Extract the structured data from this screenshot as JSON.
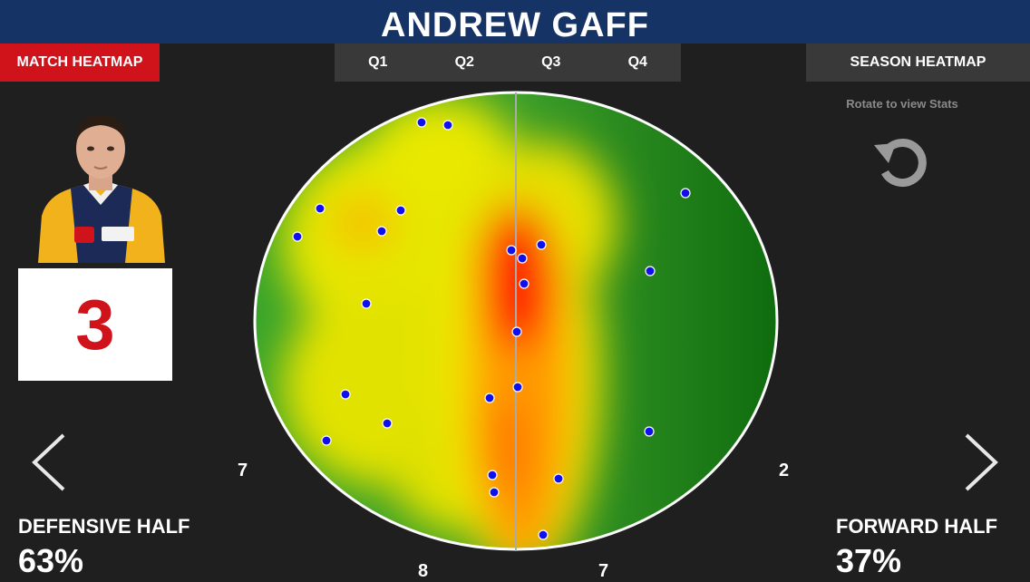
{
  "header": {
    "title": "ANDREW GAFF"
  },
  "buttons": {
    "match_heatmap": "MATCH HEATMAP",
    "season_heatmap": "SEASON HEATMAP"
  },
  "quarters": [
    "Q1",
    "Q2",
    "Q3",
    "Q4"
  ],
  "player": {
    "score": "3"
  },
  "rotate_hint": "Rotate to view Stats",
  "icons": {
    "rotate": "rotate-icon",
    "prev": "chevron-left-icon",
    "next": "chevron-right-icon"
  },
  "zones": {
    "left_mid": "7",
    "right_mid": "2",
    "bottom_left": "8",
    "bottom_right": "7"
  },
  "defensive_half": {
    "label": "DEFENSIVE HALF",
    "percent": "63%"
  },
  "forward_half": {
    "label": "FORWARD HALF",
    "percent": "37%"
  },
  "colors": {
    "header_bg": "#163366",
    "accent_red": "#d0121b",
    "tab_bg": "#393939",
    "field_green": "#1a8a1a",
    "heat_yellow": "#f0e800",
    "heat_red": "#ff1a00",
    "dot_blue": "#1010ee"
  }
}
